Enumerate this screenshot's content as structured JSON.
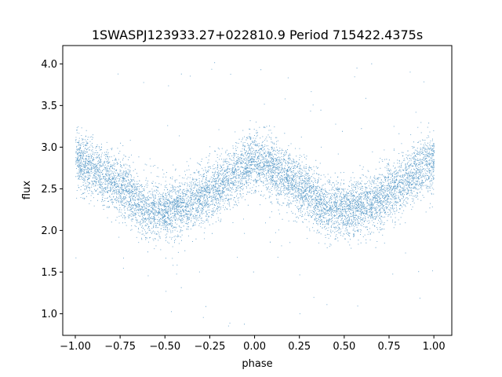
{
  "chart_data": {
    "type": "scatter",
    "title": "1SWASPJ123933.27+022810.9 Period 715422.4375s",
    "xlabel": "phase",
    "ylabel": "flux",
    "xlim": [
      -1.07,
      1.1
    ],
    "ylim": [
      0.74,
      4.22
    ],
    "x_ticks": [
      -1.0,
      -0.75,
      -0.5,
      -0.25,
      0.0,
      0.25,
      0.5,
      0.75,
      1.0
    ],
    "x_tick_labels": [
      "−1.00",
      "−0.75",
      "−0.50",
      "−0.25",
      "0.00",
      "0.25",
      "0.50",
      "0.75",
      "1.00"
    ],
    "y_ticks": [
      1.0,
      1.5,
      2.0,
      2.5,
      3.0,
      3.5,
      4.0
    ],
    "y_tick_labels": [
      "1.0",
      "1.5",
      "2.0",
      "2.5",
      "3.0",
      "3.5",
      "4.0"
    ],
    "grid": false,
    "legend": "none",
    "series_color": "#1f77b4",
    "phase_range": [
      -1.0,
      1.0
    ],
    "light_curve_trend": {
      "phase": [
        -1.0,
        -0.9,
        -0.8,
        -0.7,
        -0.6,
        -0.5,
        -0.4,
        -0.3,
        -0.2,
        -0.1,
        0.0,
        0.1,
        0.2,
        0.3,
        0.4,
        0.5,
        0.6,
        0.7,
        0.8,
        0.9,
        1.0
      ],
      "flux": [
        2.85,
        2.75,
        2.6,
        2.45,
        2.25,
        2.25,
        2.3,
        2.4,
        2.55,
        2.7,
        2.85,
        2.75,
        2.6,
        2.45,
        2.25,
        2.25,
        2.3,
        2.4,
        2.55,
        2.7,
        2.85
      ]
    },
    "scatter_width": 0.17,
    "outlier_flux_range": [
      0.85,
      4.05
    ]
  }
}
